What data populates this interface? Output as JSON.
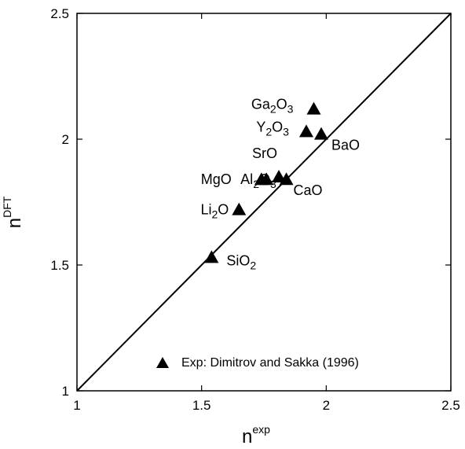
{
  "chart_data": {
    "type": "scatter",
    "xlabel": "n",
    "xlabel_sup": "exp",
    "ylabel": "n",
    "ylabel_sup": "DFT",
    "xlim": [
      1,
      2.5
    ],
    "ylim": [
      1,
      2.5
    ],
    "xticks": [
      "1",
      "1.5",
      "2",
      "2.5"
    ],
    "yticks": [
      "1",
      "1.5",
      "2",
      "2.5"
    ],
    "grid": false,
    "reference_line": "y = x",
    "marker": "filled-triangle",
    "legend_position": "bottom-right",
    "series": [
      {
        "name": "Exp: Dimitrov and Sakka (1996)",
        "points": [
          {
            "label": "Ga",
            "sub": "2",
            "label2": "O",
            "sub2": "3",
            "x": 1.95,
            "y": 2.12
          },
          {
            "label": "Y",
            "sub": "2",
            "label2": "O",
            "sub2": "3",
            "x": 1.92,
            "y": 2.03
          },
          {
            "label": "BaO",
            "sub": "",
            "label2": "",
            "sub2": "",
            "x": 1.98,
            "y": 2.02
          },
          {
            "label": "SrO",
            "sub": "",
            "label2": "",
            "sub2": "",
            "x": 1.81,
            "y": 1.85
          },
          {
            "label": "MgO",
            "sub": "",
            "label2": "",
            "sub2": "",
            "x": 1.74,
            "y": 1.84
          },
          {
            "label": "Al",
            "sub": "2",
            "label2": "O",
            "sub2": "3",
            "x": 1.76,
            "y": 1.84
          },
          {
            "label": "CaO",
            "sub": "",
            "label2": "",
            "sub2": "",
            "x": 1.84,
            "y": 1.84
          },
          {
            "label": "Li",
            "sub": "2",
            "label2": "O",
            "sub2": "",
            "x": 1.65,
            "y": 1.72
          },
          {
            "label": "SiO",
            "sub": "2",
            "label2": "",
            "sub2": "",
            "x": 1.54,
            "y": 1.53
          }
        ]
      }
    ]
  }
}
